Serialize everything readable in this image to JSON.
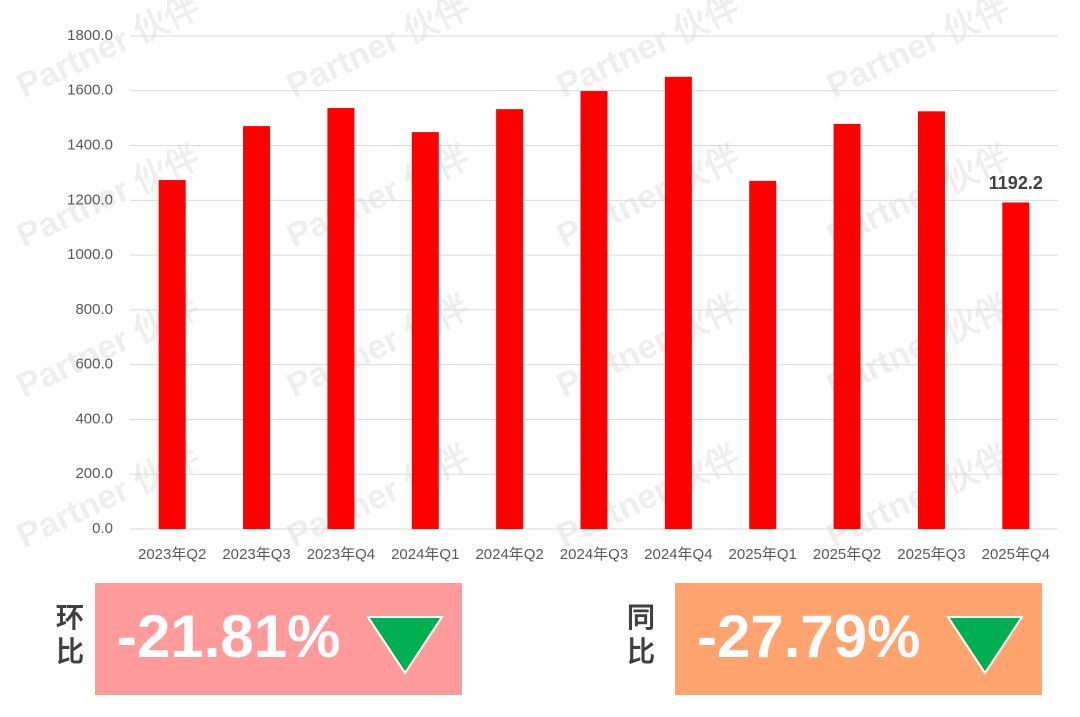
{
  "chart_data": {
    "type": "bar",
    "categories": [
      "2023年Q2",
      "2023年Q3",
      "2023年Q4",
      "2024年Q1",
      "2024年Q2",
      "2024年Q3",
      "2024年Q4",
      "2025年Q1",
      "2025年Q2",
      "2025年Q3",
      "2025年Q4"
    ],
    "values": [
      1274,
      1471,
      1537,
      1449,
      1533,
      1599,
      1651,
      1271,
      1479,
      1525,
      1192.2
    ],
    "value_labels": [
      null,
      null,
      null,
      null,
      null,
      null,
      null,
      null,
      null,
      null,
      "1192.2"
    ],
    "color": "#ff0000",
    "ylim": [
      0,
      1800
    ],
    "yticks": [
      {
        "value": 0,
        "label": "0.0"
      },
      {
        "value": 200,
        "label": "200.0"
      },
      {
        "value": 400,
        "label": "400.0"
      },
      {
        "value": 600,
        "label": "600.0"
      },
      {
        "value": 800,
        "label": "800.0"
      },
      {
        "value": 1000,
        "label": "1000.0"
      },
      {
        "value": 1200,
        "label": "1200.0"
      },
      {
        "value": 1400,
        "label": "1400.0"
      },
      {
        "value": 1600,
        "label": "1600.0"
      },
      {
        "value": 1800,
        "label": "1800.0"
      }
    ],
    "grid": true
  },
  "watermark": "Partner 伙伴",
  "kpis": [
    {
      "label": "环比",
      "value": "-21.81%",
      "color": "#ff9b9b"
    },
    {
      "label": "同比",
      "value": "-27.79%",
      "color": "#ffa36f"
    }
  ]
}
